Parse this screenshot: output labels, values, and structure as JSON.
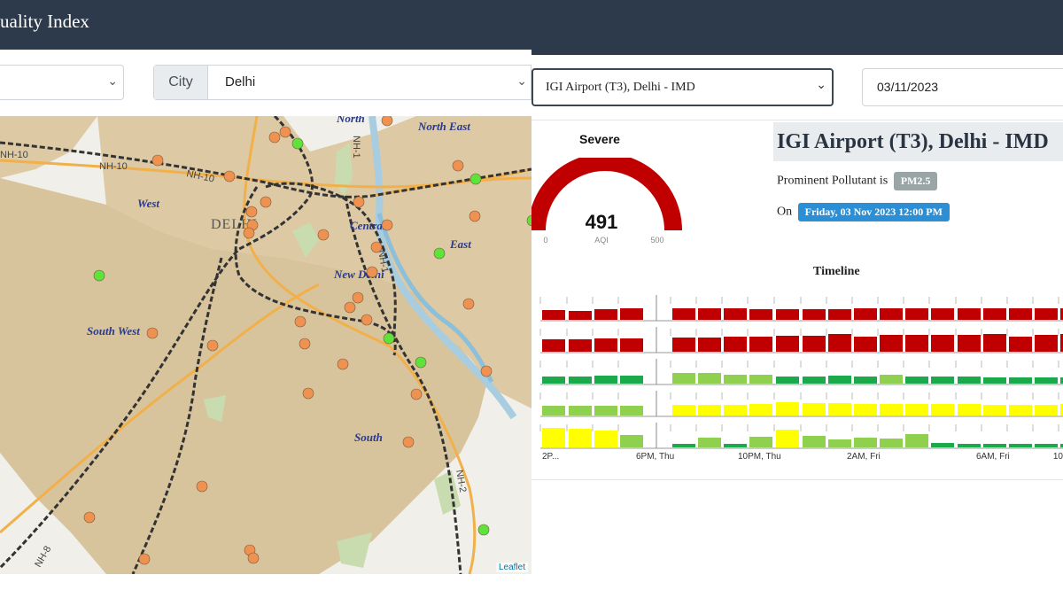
{
  "app": {
    "title": "uality Index"
  },
  "filters": {
    "state": {
      "value": ""
    },
    "city": {
      "label": "City",
      "value": "Delhi"
    },
    "station": {
      "value": "IGI Airport (T3), Delhi - IMD"
    },
    "date": {
      "value": "03/11/2023"
    }
  },
  "map": {
    "region_labels": [
      "North",
      "North East",
      "West",
      "Central",
      "East",
      "New Delhi",
      "South West",
      "South"
    ],
    "city_label": "DELHI",
    "highway_labels": [
      "NH-10",
      "NH-10",
      "NH-10",
      "NH-1",
      "NH-1",
      "NH-2",
      "NH-8"
    ],
    "attribution": "Leaflet",
    "marker_colors": {
      "good": "#5ee33a",
      "moderate": "#ef9150"
    }
  },
  "aqi": {
    "category": "Severe",
    "value": "491",
    "unit_label": "AQI",
    "min": "0",
    "max": "500",
    "gauge_color": "#c00000"
  },
  "station_info": {
    "name": "IGI Airport (T3), Delhi - IMD",
    "pollutant_prefix": "Prominent Pollutant is",
    "pollutant": "PM2.5",
    "on_prefix": "On",
    "datetime": "Friday, 03 Nov 2023 12:00 PM"
  },
  "timeline": {
    "title": "Timeline",
    "x_labels": [
      "2P...",
      "6PM, Thu",
      "10PM, Thu",
      "2AM, Fri",
      "6AM, Fri",
      "10"
    ],
    "colors": {
      "severe": "#c00000",
      "satisfactory": "#8fd14f",
      "good": "#1aa94b",
      "moderate": "#ffff00"
    }
  }
}
